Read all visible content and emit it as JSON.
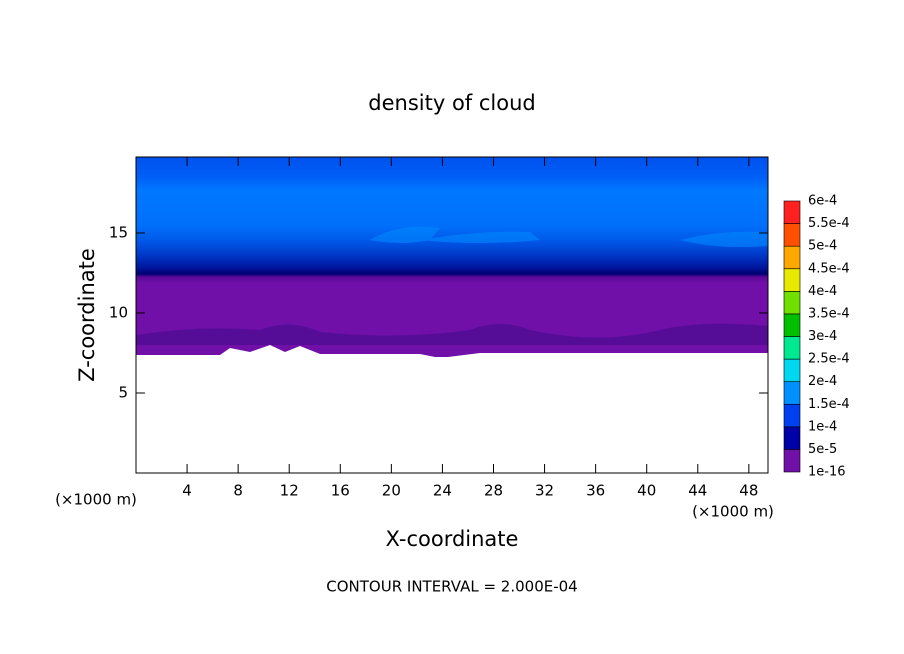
{
  "chart_data": {
    "type": "contour",
    "title": "density of cloud",
    "xlabel": "X-coordinate",
    "ylabel": "Z-coordinate",
    "xunit": "(×1000 m)",
    "yunit": "(×1000 m)",
    "footer": "CONTOUR INTERVAL = 2.000E-04",
    "xlim": [
      0,
      49.5
    ],
    "ylim": [
      0,
      19.75
    ],
    "xticks": [
      4,
      8,
      12,
      16,
      20,
      24,
      28,
      32,
      36,
      40,
      44,
      48
    ],
    "yticks": [
      5,
      10,
      15
    ],
    "colorbar": {
      "levels": [
        {
          "value": 1e-16,
          "label": "1e-16"
        },
        {
          "value": 5e-05,
          "label": "5e-5"
        },
        {
          "value": 0.0001,
          "label": "1e-4"
        },
        {
          "value": 0.00015,
          "label": "1.5e-4"
        },
        {
          "value": 0.0002,
          "label": "2e-4"
        },
        {
          "value": 0.00025,
          "label": "2.5e-4"
        },
        {
          "value": 0.0003,
          "label": "3e-4"
        },
        {
          "value": 0.00035,
          "label": "3.5e-4"
        },
        {
          "value": 0.0004,
          "label": "4e-4"
        },
        {
          "value": 0.00045,
          "label": "4.5e-4"
        },
        {
          "value": 0.0005,
          "label": "5e-4"
        },
        {
          "value": 0.00055,
          "label": "5.5e-4"
        },
        {
          "value": 0.0006,
          "label": "6e-4"
        }
      ],
      "colors": [
        "#7010a8",
        "#0000a8",
        "#0040f0",
        "#0090ff",
        "#00d8f0",
        "#00e890",
        "#00c000",
        "#70e000",
        "#e8e800",
        "#ffa800",
        "#ff5000",
        "#ff2020",
        "#ff9090"
      ]
    }
  }
}
